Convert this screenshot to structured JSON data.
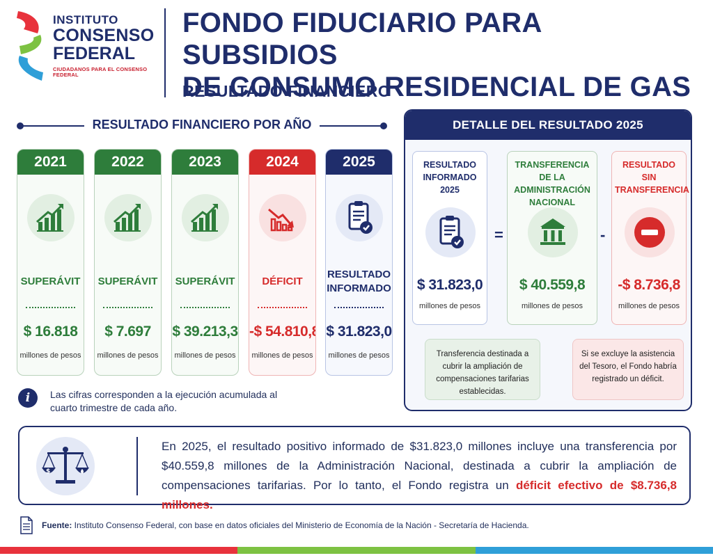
{
  "header": {
    "logo": {
      "line1": "INSTITUTO",
      "line2": "CONSENSO",
      "line3": "FEDERAL",
      "tagline": "CIUDADANOS PARA EL CONSENSO FEDERAL"
    },
    "title_line1": "FONDO FIDUCIARIO PARA SUBSIDIOS",
    "title_line2": "DE CONSUMO RESIDENCIAL DE GAS",
    "subtitle": "RESULTADO FINANCIERO"
  },
  "yearly": {
    "section_title": "RESULTADO  FINANCIERO POR AÑO",
    "unit": "millones de pesos",
    "years": [
      {
        "year": "2021",
        "status": "SUPERÁVIT",
        "value": "$ 16.818",
        "amount": 16818,
        "theme": "green",
        "icon": "chart-up-icon"
      },
      {
        "year": "2022",
        "status": "SUPERÁVIT",
        "value": "$ 7.697",
        "amount": 7697,
        "theme": "green",
        "icon": "chart-up-icon"
      },
      {
        "year": "2023",
        "status": "SUPERÁVIT",
        "value": "$ 39.213,3",
        "amount": 39213.3,
        "theme": "green",
        "icon": "chart-up-icon"
      },
      {
        "year": "2024",
        "status": "DÉFICIT",
        "value": "-$ 54.810,8",
        "amount": -54810.8,
        "theme": "red",
        "icon": "chart-down-icon"
      },
      {
        "year": "2025",
        "status_line1": "RESULTADO",
        "status_line2": "INFORMADO",
        "value": "$ 31.823,0",
        "amount": 31823.0,
        "theme": "blue",
        "icon": "clipboard-check-icon"
      }
    ]
  },
  "info_note": "Las cifras corresponden a la ejecución acumulada al cuarto trimestre de cada año.",
  "detail": {
    "title": "DETALLE DEL RESULTADO 2025",
    "unit": "millones de pesos",
    "op_equals": "=",
    "op_minus": "-",
    "cards": [
      {
        "title_lines": [
          "RESULTADO",
          "INFORMADO 2025"
        ],
        "value": "$ 31.823,0",
        "theme": "blue",
        "icon": "clipboard-check-icon"
      },
      {
        "title_lines": [
          "TRANSFERENCIA DE LA",
          "ADMINISTRACIÓN",
          "NACIONAL"
        ],
        "value": "$ 40.559,8",
        "theme": "green",
        "icon": "government-building-icon"
      },
      {
        "title_lines": [
          "RESULTADO SIN",
          "TRANSFERENCIA"
        ],
        "value": "-$ 8.736,8",
        "theme": "red",
        "icon": "minus-circle-icon"
      }
    ],
    "note_transfer": "Transferencia destinada a cubrir la ampliación de compensaciones tarifarias establecidas.",
    "note_exclusion": "Si se excluye la asistencia del Tesoro, el Fondo habría registrado un déficit."
  },
  "summary": {
    "text_before": "En 2025, el resultado positivo informado de $31.823,0 millones incluye una transferencia por $40.559,8 millones de la Administración Nacional, destinada a cubrir la ampliación de compensaciones tarifarias. Por lo tanto, el Fondo registra un ",
    "highlight": "déficit efectivo de $8.736,8 millones."
  },
  "source": {
    "label": "Fuente:",
    "text": " Instituto Consenso Federal, con base en datos oficiales del Ministerio de Economía de la Nación - Secretaría de Hacienda."
  },
  "colors": {
    "navy": "#1f2d6b",
    "green": "#2e7d3b",
    "red": "#d62b2b",
    "bar": [
      "#e8323c",
      "#7dc242",
      "#2f9fd8"
    ]
  }
}
